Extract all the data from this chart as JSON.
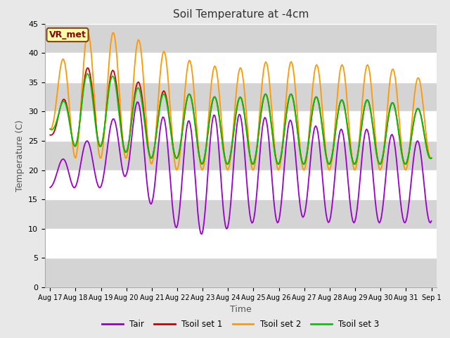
{
  "title": "Soil Temperature at -4cm",
  "xlabel": "Time",
  "ylabel": "Temperature (C)",
  "ylim": [
    0,
    45
  ],
  "bg_color": "#e8e8e8",
  "white_band_color": "#ffffff",
  "gray_band_color": "#d4d4d4",
  "line_colors": {
    "Tair": "#9900cc",
    "Tsoil_set1": "#cc0000",
    "Tsoil_set2": "#ff9900",
    "Tsoil_set3": "#00cc00"
  },
  "legend_labels": [
    "Tair",
    "Tsoil set 1",
    "Tsoil set 2",
    "Tsoil set 3"
  ],
  "annotation": "VR_met",
  "tick_labels": [
    "Aug 17",
    "Aug 18",
    "Aug 19",
    "Aug 20",
    "Aug 21",
    "Aug 22",
    "Aug 23",
    "Aug 24",
    "Aug 25",
    "Aug 26",
    "Aug 27",
    "Aug 28",
    "Aug 29",
    "Aug 30",
    "Aug 31",
    "Sep 1"
  ],
  "yticks": [
    0,
    5,
    10,
    15,
    20,
    25,
    30,
    35,
    40,
    45
  ],
  "n_points": 360
}
